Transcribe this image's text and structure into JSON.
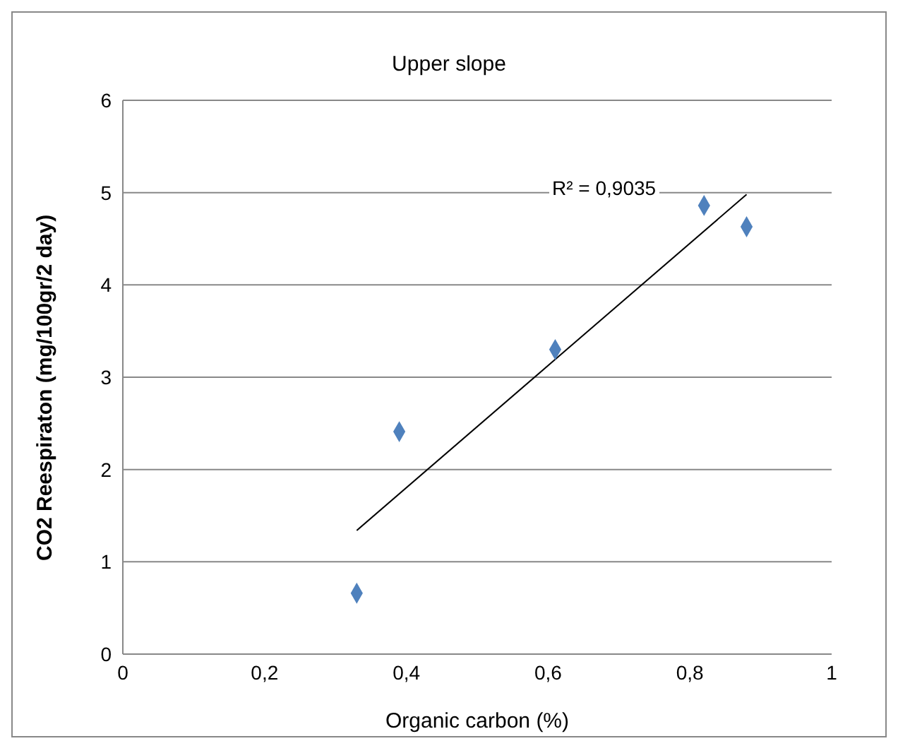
{
  "chart_data": {
    "type": "scatter",
    "title": "Upper slope",
    "xlabel": "Organic carbon (%)",
    "ylabel": "CO2 Reespiraton (mg/100gr/2 day)",
    "x": [
      0.33,
      0.39,
      0.61,
      0.82,
      0.88
    ],
    "series": [
      {
        "color": "#4f81bd",
        "marker": "diamond",
        "values": [
          0.66,
          2.41,
          3.3,
          4.86,
          4.63
        ]
      },
      {
        "type": "line",
        "color": "#000000",
        "marker": "none",
        "x": [
          0.33,
          0.88
        ],
        "values": [
          1.34,
          4.98
        ]
      }
    ],
    "xlim": [
      0,
      1
    ],
    "xticks": [
      0,
      {
        "value": 0.2,
        "label": "0,2"
      },
      {
        "value": 0.4,
        "label": "0,4"
      },
      {
        "value": 0.6,
        "label": "0,6"
      },
      {
        "value": 0.8,
        "label": "0,8"
      },
      1
    ],
    "ylim": [
      0,
      6
    ],
    "yticks": [
      0,
      1,
      2,
      3,
      4,
      5,
      6
    ],
    "grid": "y",
    "line_style": "solid",
    "legend": false,
    "annotations": [
      "R² = 0,9035"
    ]
  }
}
